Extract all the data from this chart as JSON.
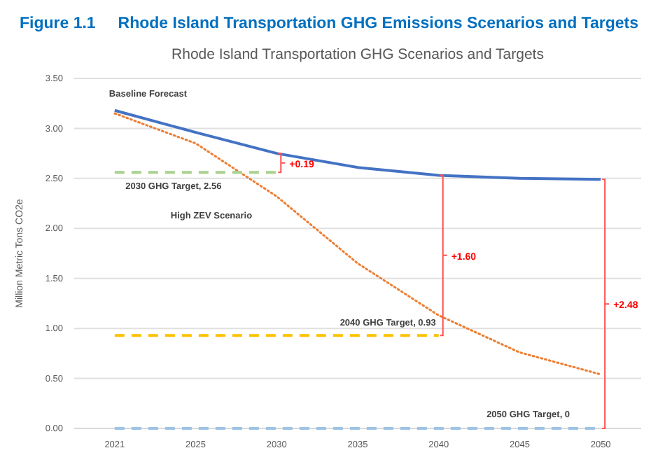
{
  "chart_data": {
    "type": "line",
    "title": "Figure 1.1     Rhode Island Transportation GHG Emissions Scenarios and Targets",
    "subtitle": "Rhode Island Transportation GHG Scenarios and Targets",
    "ylabel": "Million Metric Tons CO2e",
    "categories": [
      "2021",
      "2025",
      "2030",
      "2035",
      "2040",
      "2045",
      "2050"
    ],
    "series": [
      {
        "name": "Baseline Forecast",
        "color": "#4472c4",
        "line_style": "solid",
        "values": [
          3.18,
          2.96,
          2.75,
          2.61,
          2.53,
          2.5,
          2.49
        ]
      },
      {
        "name": "High ZEV Scenario",
        "color": "#ed7d31",
        "line_style": "dotted",
        "values": [
          3.15,
          2.85,
          2.32,
          1.65,
          1.13,
          0.76,
          0.54
        ]
      },
      {
        "name": "2030 GHG Target, 2.56",
        "color": "#a9d18e",
        "line_style": "dashed",
        "values": [
          2.56,
          2.56,
          2.56,
          null,
          null,
          null,
          null
        ]
      },
      {
        "name": "2040 GHG Target, 0.93",
        "color": "#ffc000",
        "line_style": "dashed",
        "values": [
          0.93,
          0.93,
          0.93,
          0.93,
          0.93,
          null,
          null
        ]
      },
      {
        "name": "2050 GHG Target, 0",
        "color": "#9dc3e6",
        "line_style": "dashed",
        "values": [
          0,
          0,
          0,
          0,
          0,
          0,
          0
        ]
      }
    ],
    "annotations": [
      "+0.19",
      "+1.60",
      "+2.48"
    ],
    "ylim": [
      0,
      3.5
    ],
    "yticks": [
      {
        "value": 0,
        "label": "0.00"
      },
      {
        "value": 0.5,
        "label": "0.50"
      },
      {
        "value": 1,
        "label": "1.00"
      },
      {
        "value": 1.5,
        "label": "1.50"
      },
      {
        "value": 2,
        "label": "2.00"
      },
      {
        "value": 2.5,
        "label": "2.50"
      },
      {
        "value": 3,
        "label": "3.00"
      },
      {
        "value": 3.5,
        "label": "3.50"
      }
    ],
    "grid": "y",
    "marker": "none"
  }
}
